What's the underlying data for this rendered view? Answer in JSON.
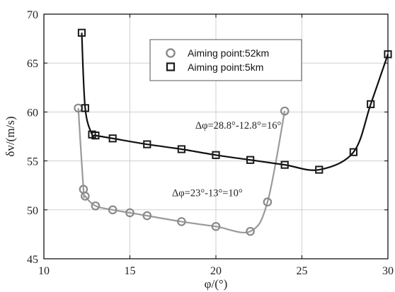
{
  "chart_data": {
    "type": "line",
    "xlabel": "φ/(°)",
    "ylabel": "δv/(m/s)",
    "xlim": [
      10,
      30
    ],
    "ylim": [
      45,
      70
    ],
    "xticks": [
      "10",
      "15",
      "20",
      "25",
      "30"
    ],
    "yticks": [
      "45",
      "50",
      "55",
      "60",
      "65",
      "70"
    ],
    "grid": true,
    "legend_position": "top-right",
    "series": [
      {
        "name": "Aiming point:52km",
        "marker": "circle",
        "marker_color": "#8a8a8a",
        "line_color": "#9a9a9a",
        "points": [
          [
            12.0,
            60.4
          ],
          [
            12.3,
            52.1
          ],
          [
            12.4,
            51.4
          ],
          [
            13.0,
            50.4
          ],
          [
            14.0,
            50.0
          ],
          [
            15.0,
            49.7
          ],
          [
            16.0,
            49.4
          ],
          [
            18.0,
            48.8
          ],
          [
            20.0,
            48.3
          ],
          [
            22.0,
            47.8
          ],
          [
            23.0,
            50.8
          ],
          [
            24.0,
            60.1
          ]
        ]
      },
      {
        "name": "Aiming point:5km",
        "marker": "square",
        "marker_color": "#1a1a1a",
        "line_color": "#111111",
        "points": [
          [
            12.2,
            68.1
          ],
          [
            12.4,
            60.4
          ],
          [
            12.8,
            57.7
          ],
          [
            13.0,
            57.6
          ],
          [
            14.0,
            57.3
          ],
          [
            16.0,
            56.7
          ],
          [
            18.0,
            56.2
          ],
          [
            20.0,
            55.6
          ],
          [
            22.0,
            55.1
          ],
          [
            24.0,
            54.6
          ],
          [
            26.0,
            54.1
          ],
          [
            28.0,
            55.9
          ],
          [
            29.0,
            60.8
          ],
          [
            30.0,
            65.9
          ]
        ]
      }
    ],
    "annotations": [
      {
        "text": "Δφ=28.8°-12.8°=16°",
        "x": 21.3,
        "y": 58.3
      },
      {
        "text": "Δφ=23°-13°=10°",
        "x": 19.5,
        "y": 51.4
      }
    ]
  }
}
